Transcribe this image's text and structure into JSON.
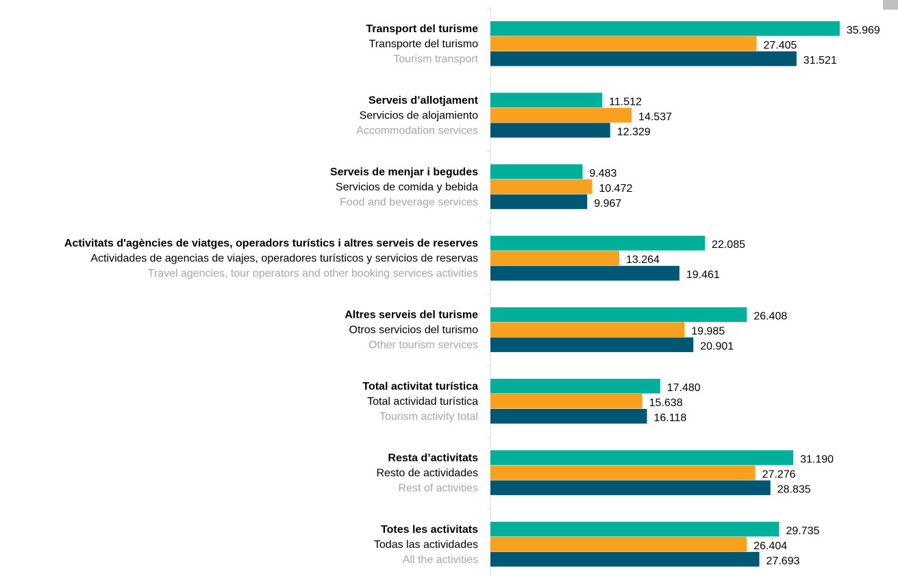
{
  "chart_data": {
    "type": "bar",
    "orientation": "horizontal",
    "categories": [
      [
        "Transport del turisme",
        "Transporte del turismo",
        "Tourism transport"
      ],
      [
        "Serveis d’allotjament",
        "Servicios de alojamiento",
        "Accommodation services"
      ],
      [
        "Serveis de menjar i begudes",
        "Servicios de comida y bebida",
        "Food and beverage services"
      ],
      [
        "Activitats d'agències de viatges, operadors turístics i altres serveis de reserves",
        "Actividades de agencias de viajes, operadores turísticos y servicios de reservas",
        "Travel agencies, tour operators and other booking services activities"
      ],
      [
        "Altres serveis del turisme",
        "Otros servicios del turismo",
        "Other tourism services"
      ],
      [
        "Total activitat turística",
        "Total actividad turística",
        "Tourism activity total"
      ],
      [
        "Resta d’activitats",
        "Resto de actividades",
        "Rest of activities"
      ],
      [
        "Totes les activitats",
        "Todas las actividades",
        "All the activities"
      ]
    ],
    "series": [
      {
        "color": "#00b09b",
        "values": [
          35.969,
          11.512,
          9.483,
          22.085,
          26.408,
          17.48,
          31.19,
          29.735
        ],
        "value_labels": [
          "35.969",
          "11.512",
          "9.483",
          "22.085",
          "26.408",
          "17.480",
          "31.190",
          "29.735"
        ]
      },
      {
        "color": "#f8a11f",
        "values": [
          27.405,
          14.537,
          10.472,
          13.264,
          19.985,
          15.638,
          27.276,
          26.404
        ],
        "value_labels": [
          "27.405",
          "14.537",
          "10.472",
          "13.264",
          "19.985",
          "15.638",
          "27.276",
          "26.404"
        ]
      },
      {
        "color": "#005773",
        "values": [
          31.521,
          12.329,
          9.967,
          19.461,
          20.901,
          16.118,
          28.835,
          27.693
        ],
        "value_labels": [
          "31.521",
          "12.329",
          "9.967",
          "19.461",
          "20.901",
          "16.118",
          "28.835",
          "27.693"
        ]
      }
    ],
    "xlim": [
      0,
      40
    ]
  }
}
